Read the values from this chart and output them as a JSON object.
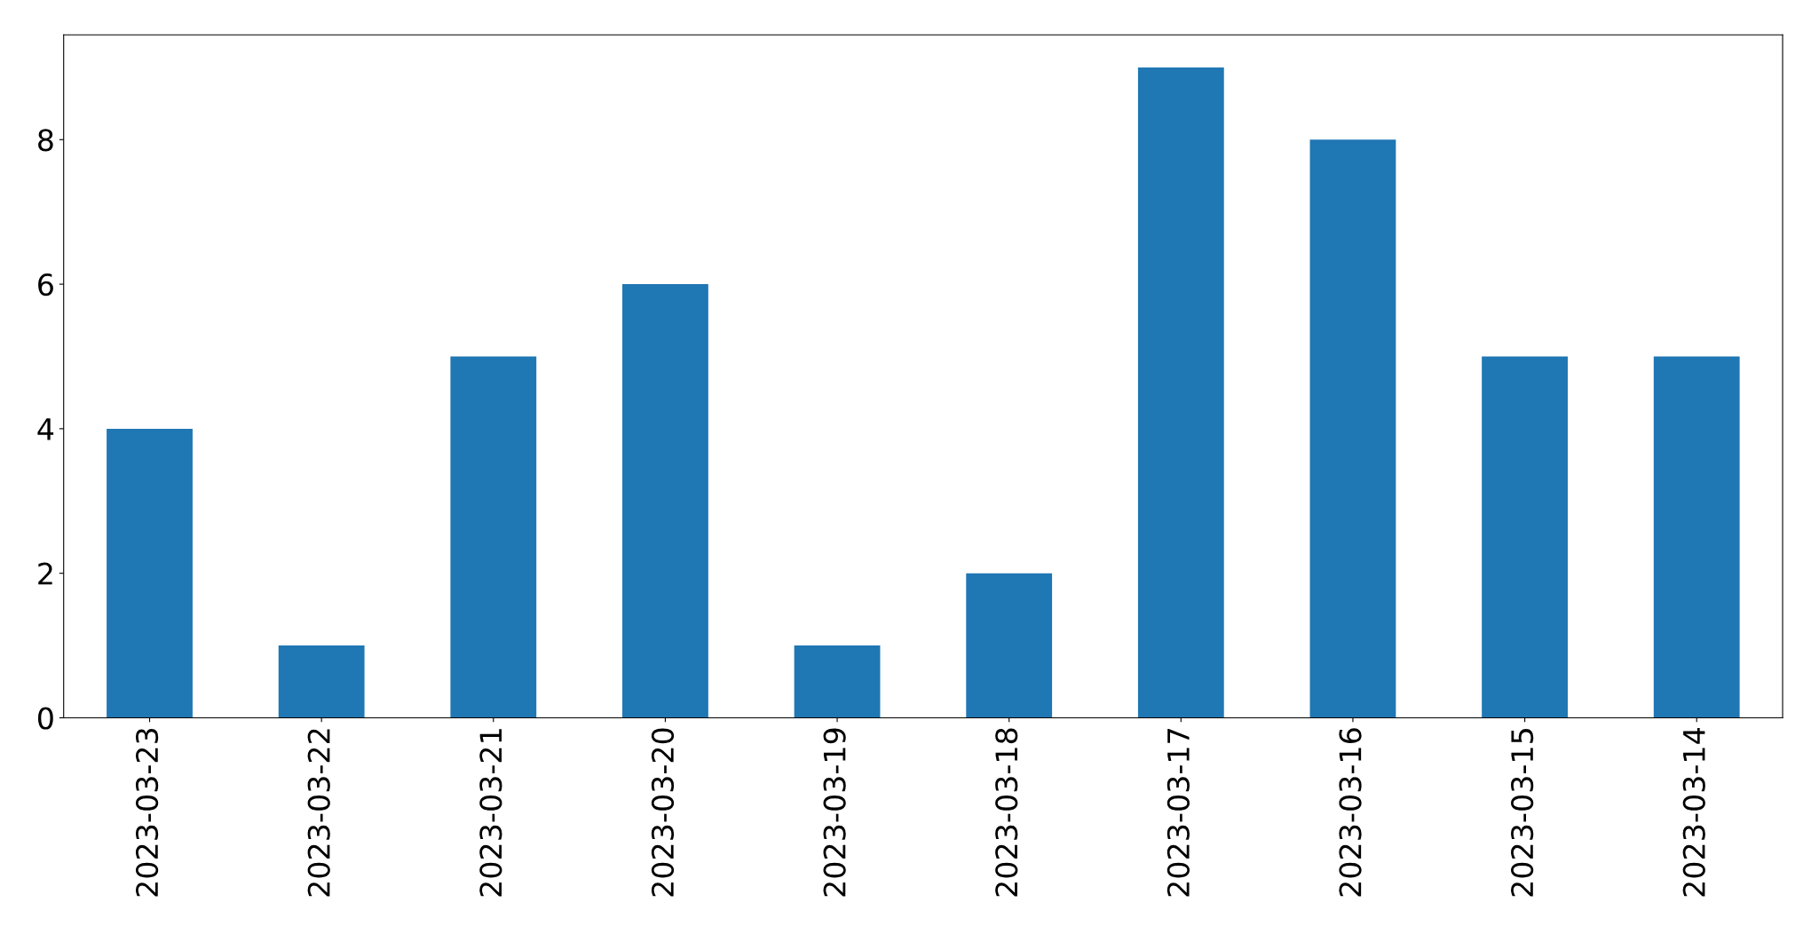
{
  "chart_data": {
    "type": "bar",
    "categories": [
      "2023-03-23",
      "2023-03-22",
      "2023-03-21",
      "2023-03-20",
      "2023-03-19",
      "2023-03-18",
      "2023-03-17",
      "2023-03-16",
      "2023-03-15",
      "2023-03-14"
    ],
    "values": [
      4,
      1,
      5,
      6,
      1,
      2,
      9,
      8,
      5,
      5
    ],
    "color": "#1f77b4",
    "ylim": [
      0,
      9.45
    ],
    "yticks": [
      0,
      2,
      4,
      6,
      8
    ],
    "grid": false
  }
}
